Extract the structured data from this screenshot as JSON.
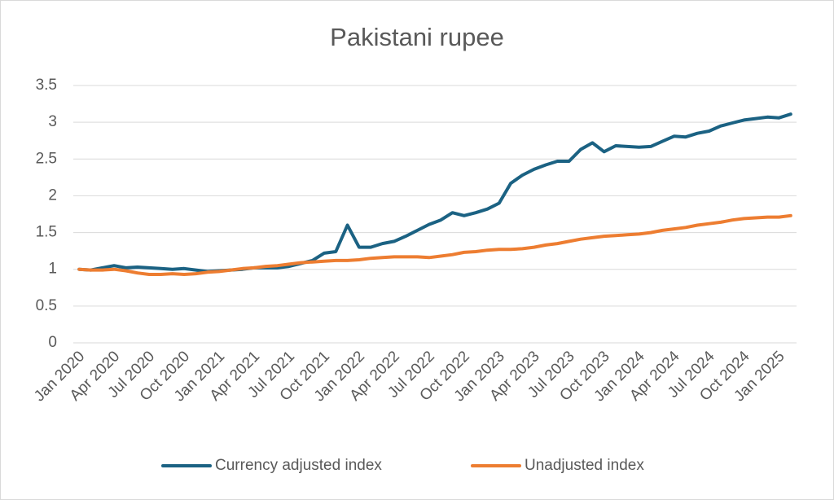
{
  "chart_data": {
    "type": "line",
    "title": "Pakistani rupee",
    "categories": [
      "Jan 2020",
      null,
      null,
      "Apr 2020",
      null,
      null,
      "Jul 2020",
      null,
      null,
      "Oct 2020",
      null,
      null,
      "Jan 2021",
      null,
      null,
      "Apr 2021",
      null,
      null,
      "Jul 2021",
      null,
      null,
      "Oct 2021",
      null,
      null,
      "Jan 2022",
      null,
      null,
      "Apr 2022",
      null,
      null,
      "Jul 2022",
      null,
      null,
      "Oct 2022",
      null,
      null,
      "Jan 2023",
      null,
      null,
      "Apr 2023",
      null,
      null,
      "Jul 2023",
      null,
      null,
      "Oct 2023",
      null,
      null,
      "Jan 2024",
      null,
      null,
      "Apr 2024",
      null,
      null,
      "Jul 2024",
      null,
      null,
      "Oct 2024",
      null,
      null,
      "Jan 2025",
      null
    ],
    "series": [
      {
        "name": "Currency adjusted index",
        "color": "#1b6283",
        "values": [
          1.0,
          0.99,
          1.02,
          1.05,
          1.02,
          1.03,
          1.02,
          1.01,
          1.0,
          1.01,
          0.99,
          0.97,
          0.98,
          0.99,
          1.0,
          1.02,
          1.02,
          1.02,
          1.04,
          1.08,
          1.12,
          1.22,
          1.24,
          1.6,
          1.3,
          1.3,
          1.35,
          1.38,
          1.45,
          1.53,
          1.61,
          1.67,
          1.77,
          1.73,
          1.77,
          1.82,
          1.9,
          2.17,
          2.28,
          2.36,
          2.42,
          2.47,
          2.47,
          2.63,
          2.72,
          2.6,
          2.68,
          2.67,
          2.66,
          2.67,
          2.74,
          2.81,
          2.8,
          2.85,
          2.88,
          2.95,
          2.99,
          3.03,
          3.05,
          3.07,
          3.06,
          3.11
        ]
      },
      {
        "name": "Unadjusted index",
        "color": "#ed7d31",
        "values": [
          1.0,
          0.99,
          0.99,
          1.0,
          0.98,
          0.95,
          0.93,
          0.93,
          0.94,
          0.93,
          0.94,
          0.96,
          0.97,
          0.99,
          1.01,
          1.02,
          1.04,
          1.05,
          1.07,
          1.09,
          1.1,
          1.11,
          1.12,
          1.12,
          1.13,
          1.15,
          1.16,
          1.17,
          1.17,
          1.17,
          1.16,
          1.18,
          1.2,
          1.23,
          1.24,
          1.26,
          1.27,
          1.27,
          1.28,
          1.3,
          1.33,
          1.35,
          1.38,
          1.41,
          1.43,
          1.45,
          1.46,
          1.47,
          1.48,
          1.5,
          1.53,
          1.55,
          1.57,
          1.6,
          1.62,
          1.64,
          1.67,
          1.69,
          1.7,
          1.71,
          1.71,
          1.73
        ]
      }
    ],
    "ylim": [
      0,
      3.5
    ],
    "yticks": [
      0,
      0.5,
      1,
      1.5,
      2,
      2.5,
      3,
      3.5
    ],
    "grid": true,
    "legend": "bottom"
  }
}
